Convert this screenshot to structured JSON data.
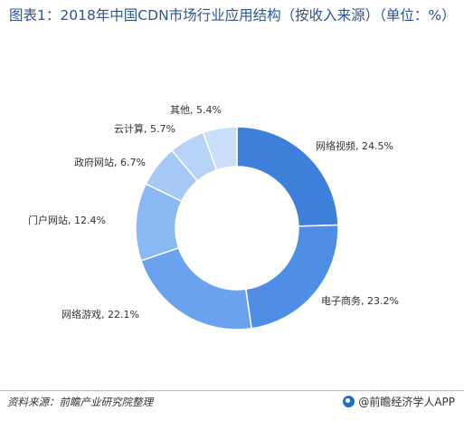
{
  "page": {
    "title": "图表1：2018年中国CDN市场行业应用结构（按收入来源）（单位：%）",
    "source": "资料来源：前瞻产业研究院整理",
    "brand": "@前瞻经济学人APP"
  },
  "chart_data": {
    "type": "pie",
    "donut": true,
    "title": "图表1：2018年中国CDN市场行业应用结构（按收入来源）（单位：%）",
    "slices": [
      {
        "name": "网络视频",
        "value": 24.5,
        "label": "网络视频, 24.5%",
        "color": "#3f7fdc"
      },
      {
        "name": "电子商务",
        "value": 23.2,
        "label": "电子商务, 23.2%",
        "color": "#4f8ee5"
      },
      {
        "name": "网络游戏",
        "value": 22.1,
        "label": "网络游戏, 22.1%",
        "color": "#6ba2ee"
      },
      {
        "name": "门户网站",
        "value": 12.4,
        "label": "门户网站, 12.4%",
        "color": "#8ab8f3"
      },
      {
        "name": "政府网站",
        "value": 6.7,
        "label": "政府网站, 6.7%",
        "color": "#a6c9f6"
      },
      {
        "name": "云计算",
        "value": 5.7,
        "label": "云计算, 5.7%",
        "color": "#b7d4f7"
      },
      {
        "name": "其他",
        "value": 5.4,
        "label": "其他, 5.4%",
        "color": "#c9def9"
      }
    ]
  }
}
